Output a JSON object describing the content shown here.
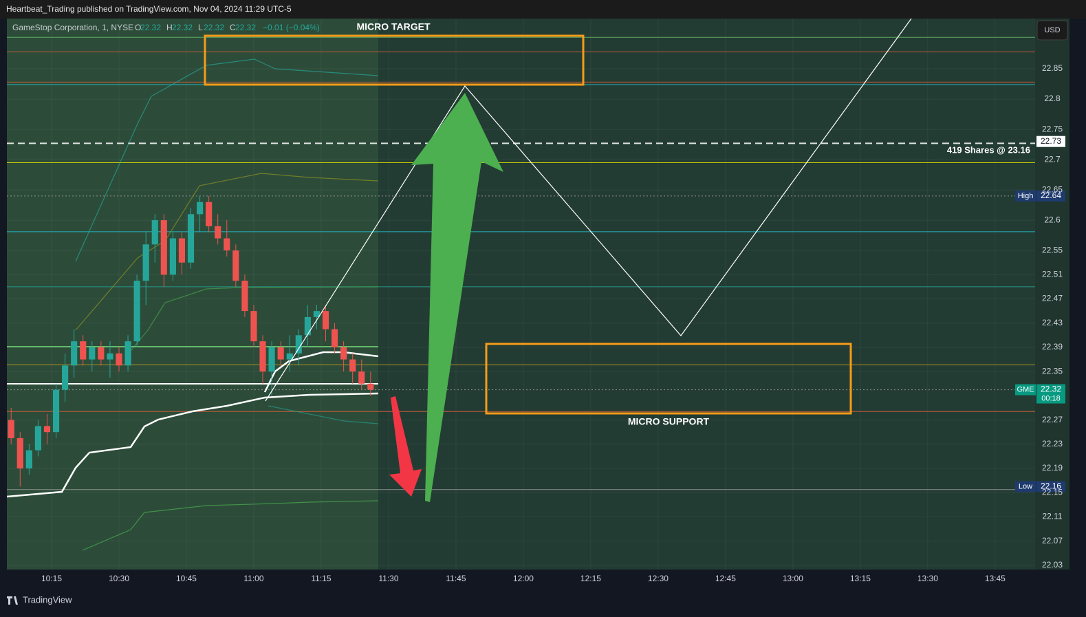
{
  "chart_data": {
    "type": "candlestick",
    "header": "Heartbeat_Trading published on TradingView.com, Nov 04, 2024 11:29 UTC-5",
    "symbol": "GameStop Corporation, 1, NYSE",
    "legend_ohlc": [
      {
        "label": "O",
        "value": 22.32
      },
      {
        "label": "H",
        "value": 22.32
      },
      {
        "label": "L",
        "value": 22.32
      },
      {
        "label": "C",
        "value": 22.32
      }
    ],
    "change": "−0.01 (−0.04%)",
    "currency": "USD",
    "footer": "TradingView",
    "annotations": {
      "target": "MICRO TARGET",
      "support": "MICRO SUPPORT",
      "position": "419 Shares @ 23.16"
    },
    "x": [
      606,
      608,
      610,
      612,
      614,
      616,
      618,
      620,
      622,
      624,
      626,
      628,
      630,
      632,
      634,
      636,
      638,
      640,
      642,
      644,
      646,
      648,
      650,
      652,
      654,
      656,
      658,
      660,
      662,
      664,
      666,
      668,
      670,
      672,
      674,
      676,
      678,
      680,
      682,
      684,
      686
    ],
    "open": [
      22.27,
      22.24,
      22.19,
      22.22,
      22.26,
      22.25,
      22.32,
      22.36,
      22.4,
      22.37,
      22.39,
      22.37,
      22.38,
      22.36,
      22.4,
      22.5,
      22.56,
      22.6,
      22.51,
      22.57,
      22.53,
      22.61,
      22.63,
      22.59,
      22.57,
      22.55,
      22.5,
      22.45,
      22.4,
      22.35,
      22.39,
      22.37,
      22.38,
      22.41,
      22.44,
      22.45,
      22.42,
      22.39,
      22.37,
      22.35,
      22.33
    ],
    "high": [
      22.29,
      22.25,
      22.23,
      22.27,
      22.28,
      22.33,
      22.38,
      22.42,
      22.41,
      22.4,
      22.4,
      22.4,
      22.39,
      22.41,
      22.51,
      22.58,
      22.61,
      22.61,
      22.58,
      22.58,
      22.62,
      22.64,
      22.64,
      22.61,
      22.6,
      22.56,
      22.51,
      22.46,
      22.41,
      22.4,
      22.4,
      22.41,
      22.42,
      22.46,
      22.46,
      22.46,
      22.43,
      22.4,
      22.38,
      22.37,
      22.35
    ],
    "low": [
      22.23,
      22.16,
      22.18,
      22.21,
      22.23,
      22.24,
      22.3,
      22.34,
      22.36,
      22.35,
      22.36,
      22.34,
      22.35,
      22.35,
      22.39,
      22.46,
      22.53,
      22.49,
      22.5,
      22.51,
      22.52,
      22.58,
      22.58,
      22.56,
      22.54,
      22.49,
      22.44,
      22.39,
      22.33,
      22.31,
      22.36,
      22.35,
      22.36,
      22.39,
      22.42,
      22.4,
      22.38,
      22.35,
      22.33,
      22.32,
      22.31
    ],
    "close": [
      22.24,
      22.19,
      22.22,
      22.26,
      22.25,
      22.32,
      22.36,
      22.4,
      22.37,
      22.39,
      22.37,
      22.38,
      22.36,
      22.4,
      22.5,
      22.56,
      22.6,
      22.51,
      22.57,
      22.53,
      22.61,
      22.63,
      22.59,
      22.57,
      22.55,
      22.5,
      22.45,
      22.4,
      22.35,
      22.39,
      22.37,
      22.38,
      22.41,
      22.44,
      22.45,
      22.42,
      22.39,
      22.37,
      22.35,
      22.33,
      22.32
    ],
    "up_color": "#26a69a",
    "down_color": "#ef5350",
    "xlim": [
      605.05,
      833.9
    ],
    "xticks": [
      {
        "value": 615,
        "label": "10:15"
      },
      {
        "value": 630,
        "label": "10:30"
      },
      {
        "value": 645,
        "label": "10:45"
      },
      {
        "value": 660,
        "label": "11:00"
      },
      {
        "value": 675,
        "label": "11:15"
      },
      {
        "value": 690,
        "label": "11:30"
      },
      {
        "value": 705,
        "label": "11:45"
      },
      {
        "value": 720,
        "label": "12:00"
      },
      {
        "value": 735,
        "label": "12:15"
      },
      {
        "value": 750,
        "label": "12:30"
      },
      {
        "value": 765,
        "label": "12:45"
      },
      {
        "value": 780,
        "label": "13:00"
      },
      {
        "value": 795,
        "label": "13:15"
      },
      {
        "value": 810,
        "label": "13:30"
      },
      {
        "value": 825,
        "label": "13:45"
      }
    ],
    "ylim": [
      22.023,
      22.933
    ],
    "yticks": [
      22.03,
      22.07,
      22.11,
      22.15,
      22.19,
      22.23,
      22.27,
      22.35,
      22.39,
      22.43,
      22.47,
      22.51,
      22.55,
      22.6,
      22.65,
      22.7,
      22.75,
      22.8,
      22.85
    ],
    "grid": true,
    "levels": [
      {
        "value": 22.902,
        "color": "#66bb6a",
        "style": "solid"
      },
      {
        "value": 22.878,
        "color": "#e0603a",
        "style": "solid"
      },
      {
        "value": 22.828,
        "color": "#e0603a",
        "style": "solid"
      },
      {
        "value": 22.824,
        "color": "#26c6da",
        "style": "solid"
      },
      {
        "value": 22.727,
        "color": "#ffffff",
        "style": "dashed"
      },
      {
        "value": 22.695,
        "color": "#e6e600",
        "style": "solid"
      },
      {
        "value": 22.64,
        "color": "#9e9e9e",
        "style": "dotted"
      },
      {
        "value": 22.581,
        "color": "#26c6da",
        "style": "solid"
      },
      {
        "value": 22.49,
        "color": "#26a69a",
        "style": "solid"
      },
      {
        "value": 22.361,
        "color": "#d4a017",
        "style": "solid"
      },
      {
        "value": 22.32,
        "color": "#9e9e9e",
        "style": "dotted"
      },
      {
        "value": 22.284,
        "color": "#e0603a",
        "style": "solid"
      },
      {
        "value": 22.155,
        "color": "#9e9e9e",
        "style": "solid"
      }
    ],
    "price_labels": [
      {
        "value": 22.73,
        "color": "#ffffff",
        "text_color": "#131722"
      },
      {
        "label": "High",
        "value": 22.64,
        "color": "#1e3a6e",
        "text_color": "#ffffff"
      },
      {
        "label": "GME",
        "value": 22.32,
        "countdown": "00:18",
        "color": "#089981",
        "text_color": "#ffffff"
      },
      {
        "label": "Low",
        "value": 22.16,
        "color": "#1e3a6e",
        "text_color": "#ffffff"
      }
    ]
  }
}
